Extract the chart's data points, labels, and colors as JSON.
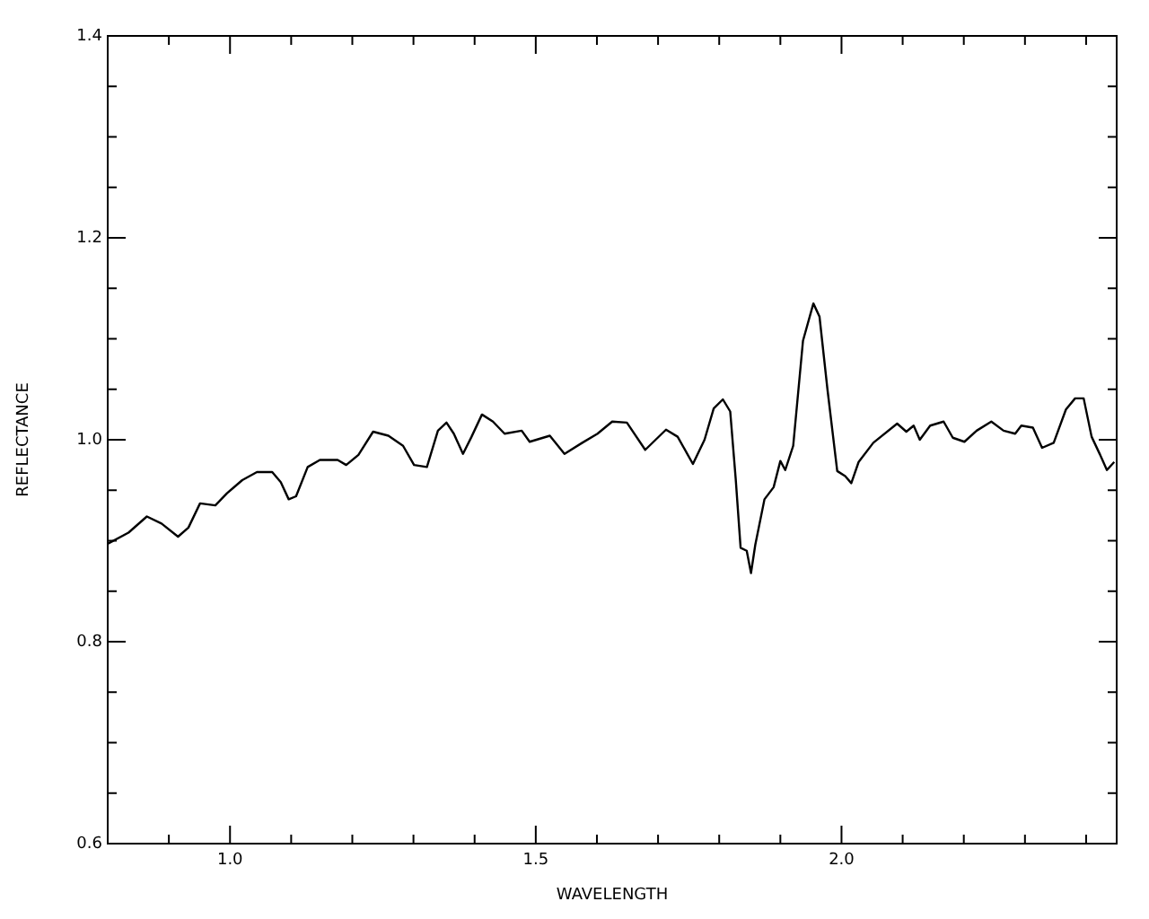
{
  "chart_data": {
    "type": "line",
    "xlabel": "WAVELENGTH",
    "ylabel": "REFLECTANCE",
    "color": "#000000",
    "marker": "none",
    "grid": false,
    "legend": false,
    "xlim": [
      0.8,
      2.45
    ],
    "ylim": [
      0.6,
      1.4
    ],
    "xticks": [
      {
        "value": 0.9,
        "label": null
      },
      {
        "value": 1.0,
        "label": "1.0"
      },
      {
        "value": 1.1,
        "label": null
      },
      {
        "value": 1.2,
        "label": null
      },
      {
        "value": 1.3,
        "label": null
      },
      {
        "value": 1.4,
        "label": null
      },
      {
        "value": 1.5,
        "label": "1.5"
      },
      {
        "value": 1.6,
        "label": null
      },
      {
        "value": 1.7,
        "label": null
      },
      {
        "value": 1.8,
        "label": null
      },
      {
        "value": 1.9,
        "label": null
      },
      {
        "value": 2.0,
        "label": "2.0"
      },
      {
        "value": 2.1,
        "label": null
      },
      {
        "value": 2.2,
        "label": null
      },
      {
        "value": 2.3,
        "label": null
      },
      {
        "value": 2.4,
        "label": null
      }
    ],
    "yticks": [
      {
        "value": 0.6,
        "label": "0.6"
      },
      {
        "value": 0.65,
        "label": null
      },
      {
        "value": 0.7,
        "label": null
      },
      {
        "value": 0.75,
        "label": null
      },
      {
        "value": 0.8,
        "label": "0.8"
      },
      {
        "value": 0.85,
        "label": null
      },
      {
        "value": 0.9,
        "label": null
      },
      {
        "value": 0.95,
        "label": null
      },
      {
        "value": 1.0,
        "label": "1.0"
      },
      {
        "value": 1.05,
        "label": null
      },
      {
        "value": 1.1,
        "label": null
      },
      {
        "value": 1.15,
        "label": null
      },
      {
        "value": 1.2,
        "label": "1.2"
      },
      {
        "value": 1.25,
        "label": null
      },
      {
        "value": 1.3,
        "label": null
      },
      {
        "value": 1.35,
        "label": null
      },
      {
        "value": 1.4,
        "label": "1.4"
      }
    ],
    "x": [
      0.8,
      0.834,
      0.864,
      0.888,
      0.915,
      0.932,
      0.951,
      0.976,
      0.995,
      1.02,
      1.044,
      1.069,
      1.083,
      1.096,
      1.108,
      1.127,
      1.147,
      1.176,
      1.19,
      1.21,
      1.234,
      1.259,
      1.283,
      1.301,
      1.322,
      1.34,
      1.354,
      1.366,
      1.381,
      1.395,
      1.412,
      1.43,
      1.449,
      1.477,
      1.49,
      1.523,
      1.547,
      1.576,
      1.601,
      1.625,
      1.649,
      1.679,
      1.713,
      1.732,
      1.757,
      1.776,
      1.791,
      1.806,
      1.818,
      1.827,
      1.835,
      1.845,
      1.852,
      1.859,
      1.874,
      1.889,
      1.9,
      1.908,
      1.921,
      1.937,
      1.954,
      1.964,
      1.977,
      1.993,
      2.006,
      2.016,
      2.028,
      2.052,
      2.091,
      2.106,
      2.118,
      2.128,
      2.145,
      2.167,
      2.182,
      2.201,
      2.221,
      2.245,
      2.265,
      2.284,
      2.294,
      2.313,
      2.328,
      2.347,
      2.367,
      2.382,
      2.396,
      2.409,
      2.423,
      2.434,
      2.446
    ],
    "values": [
      0.897,
      0.908,
      0.924,
      0.917,
      0.904,
      0.913,
      0.937,
      0.935,
      0.947,
      0.96,
      0.968,
      0.968,
      0.958,
      0.941,
      0.944,
      0.973,
      0.98,
      0.98,
      0.975,
      0.985,
      1.008,
      1.004,
      0.994,
      0.975,
      0.973,
      1.009,
      1.017,
      1.006,
      0.986,
      1.003,
      1.025,
      1.018,
      1.006,
      1.009,
      0.998,
      1.004,
      0.986,
      0.997,
      1.006,
      1.018,
      1.017,
      0.99,
      1.01,
      1.003,
      0.976,
      1.0,
      1.031,
      1.04,
      1.028,
      0.961,
      0.893,
      0.89,
      0.868,
      0.896,
      0.941,
      0.953,
      0.979,
      0.97,
      0.994,
      1.098,
      1.135,
      1.122,
      1.05,
      0.969,
      0.964,
      0.957,
      0.978,
      0.997,
      1.016,
      1.008,
      1.014,
      1.0,
      1.014,
      1.018,
      1.002,
      0.998,
      1.009,
      1.018,
      1.009,
      1.006,
      1.014,
      1.012,
      0.992,
      0.997,
      1.03,
      1.041,
      1.041,
      1.003,
      0.985,
      0.97,
      0.978
    ]
  }
}
